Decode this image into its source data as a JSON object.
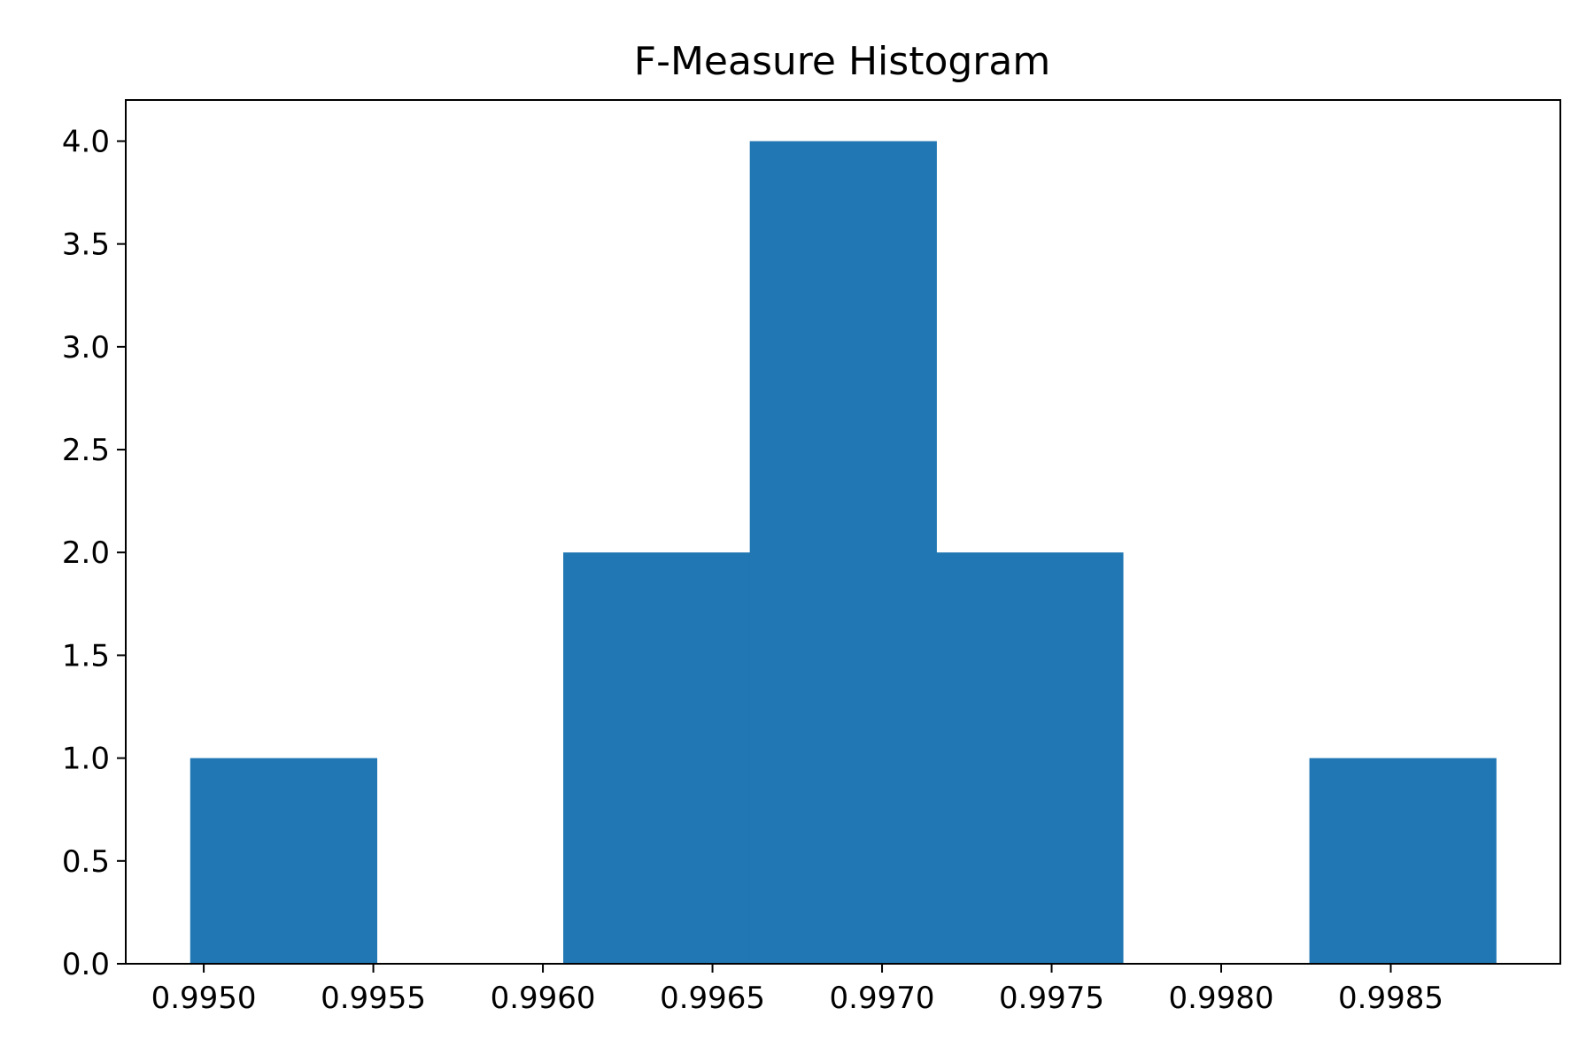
{
  "chart_data": {
    "type": "bar",
    "title": "F-Measure Histogram",
    "xlabel": "",
    "ylabel": "",
    "bins": [
      {
        "start": 0.99496,
        "end": 0.99551,
        "count": 1
      },
      {
        "start": 0.99551,
        "end": 0.99606,
        "count": 0
      },
      {
        "start": 0.99606,
        "end": 0.99661,
        "count": 2
      },
      {
        "start": 0.99661,
        "end": 0.99716,
        "count": 4
      },
      {
        "start": 0.99716,
        "end": 0.99771,
        "count": 2
      },
      {
        "start": 0.99771,
        "end": 0.99826,
        "count": 0
      },
      {
        "start": 0.99826,
        "end": 0.99881,
        "count": 1
      }
    ],
    "xlim": [
      0.99477,
      0.999
    ],
    "ylim": [
      0,
      4.2
    ],
    "xticks": [
      {
        "value": 0.995,
        "label": "0.9950"
      },
      {
        "value": 0.9955,
        "label": "0.9955"
      },
      {
        "value": 0.996,
        "label": "0.9960"
      },
      {
        "value": 0.9965,
        "label": "0.9965"
      },
      {
        "value": 0.997,
        "label": "0.9970"
      },
      {
        "value": 0.9975,
        "label": "0.9975"
      },
      {
        "value": 0.998,
        "label": "0.9980"
      },
      {
        "value": 0.9985,
        "label": "0.9985"
      }
    ],
    "yticks": [
      {
        "value": 0.0,
        "label": "0.0"
      },
      {
        "value": 0.5,
        "label": "0.5"
      },
      {
        "value": 1.0,
        "label": "1.0"
      },
      {
        "value": 1.5,
        "label": "1.5"
      },
      {
        "value": 2.0,
        "label": "2.0"
      },
      {
        "value": 2.5,
        "label": "2.5"
      },
      {
        "value": 3.0,
        "label": "3.0"
      },
      {
        "value": 3.5,
        "label": "3.5"
      },
      {
        "value": 4.0,
        "label": "4.0"
      }
    ],
    "grid": false,
    "bar_color": "#2177b3"
  }
}
